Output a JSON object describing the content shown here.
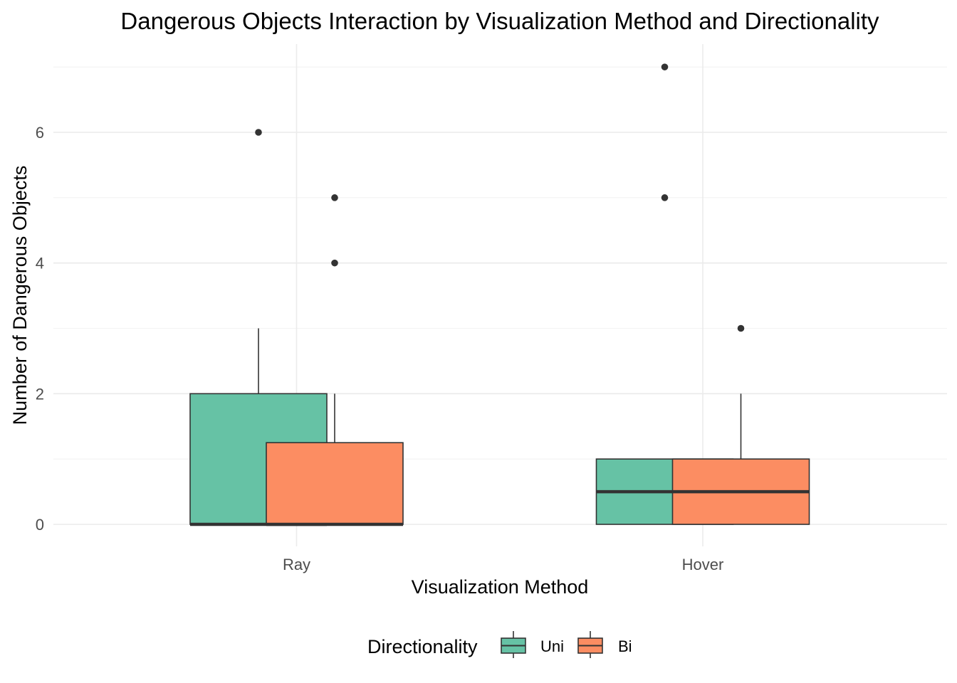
{
  "chart_data": {
    "type": "box",
    "title": "Dangerous Objects Interaction by Visualization Method and Directionality",
    "xlabel": "Visualization Method",
    "ylabel": "Number of Dangerous Objects",
    "categories": [
      "Ray",
      "Hover"
    ],
    "ylim": [
      -0.7,
      7.35
    ],
    "yticks": [
      0,
      2,
      4,
      6
    ],
    "grid": true,
    "legend": {
      "title": "Directionality",
      "position": "bottom",
      "entries": [
        {
          "label": "Uni",
          "color": "#66c2a5"
        },
        {
          "label": "Bi",
          "color": "#fc8d62"
        }
      ]
    },
    "series": [
      {
        "name": "Uni",
        "color": "#66c2a5",
        "boxes": [
          {
            "category": "Ray",
            "min": 0,
            "q1": 0,
            "median": 0,
            "q3": 2,
            "max": 3,
            "outliers": [
              6
            ]
          },
          {
            "category": "Hover",
            "min": 0,
            "q1": 0,
            "median": 0.5,
            "q3": 1,
            "max": 1,
            "outliers": [
              5,
              7
            ]
          }
        ]
      },
      {
        "name": "Bi",
        "color": "#fc8d62",
        "boxes": [
          {
            "category": "Ray",
            "min": 0,
            "q1": 0,
            "median": 0,
            "q3": 1.25,
            "max": 2,
            "outliers": [
              4,
              5
            ]
          },
          {
            "category": "Hover",
            "min": 0,
            "q1": 0,
            "median": 0.5,
            "q3": 1,
            "max": 2,
            "outliers": [
              3
            ]
          }
        ]
      }
    ]
  }
}
